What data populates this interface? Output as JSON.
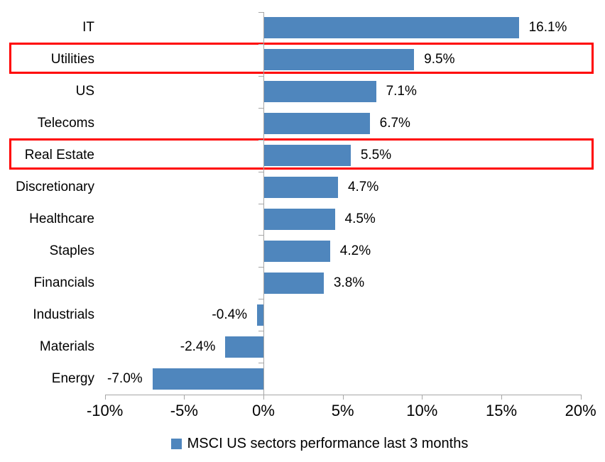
{
  "chart_data": {
    "type": "bar",
    "orientation": "horizontal",
    "title": "",
    "categories": [
      "IT",
      "Utilities",
      "US",
      "Telecoms",
      "Real Estate",
      "Discretionary",
      "Healthcare",
      "Staples",
      "Financials",
      "Industrials",
      "Materials",
      "Energy"
    ],
    "values": [
      16.1,
      9.5,
      7.1,
      6.7,
      5.5,
      4.7,
      4.5,
      4.2,
      3.8,
      -0.4,
      -2.4,
      -7.0
    ],
    "data_labels": [
      "16.1%",
      "9.5%",
      "7.1%",
      "6.7%",
      "5.5%",
      "4.7%",
      "4.5%",
      "4.2%",
      "3.8%",
      "-0.4%",
      "-2.4%",
      "-7.0%"
    ],
    "highlighted_categories": [
      "Utilities",
      "Real Estate"
    ],
    "x_tick_labels": [
      "-10%",
      "-5%",
      "0%",
      "5%",
      "10%",
      "15%",
      "20%"
    ],
    "x_tick_values": [
      -10,
      -5,
      0,
      5,
      10,
      15,
      20
    ],
    "xlim": [
      -10,
      20
    ],
    "grid": false,
    "legend_position": "bottom",
    "legend": "MSCI US sectors performance last 3 months",
    "colors": {
      "bar": "#4f86bd",
      "highlight_border": "#ff0000",
      "axis": "#a6a6a6",
      "text": "#000000"
    }
  }
}
